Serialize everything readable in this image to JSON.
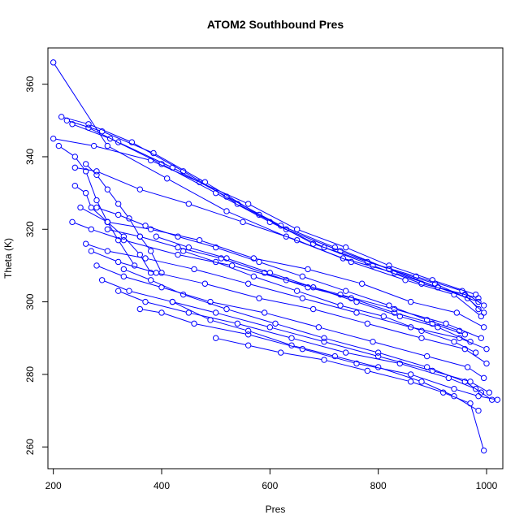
{
  "chart_data": {
    "type": "line",
    "title": "ATOM2 Southbound Pres",
    "xlabel": "Pres",
    "ylabel": "Theta (K)",
    "xlim": [
      190,
      1030
    ],
    "ylim": [
      254,
      370
    ],
    "xticks": [
      200,
      400,
      600,
      800,
      1000
    ],
    "yticks": [
      260,
      280,
      300,
      320,
      340,
      360
    ],
    "marker": "open-circle",
    "grid": false,
    "legend": "none",
    "color": "#0000ff",
    "series": [
      {
        "x": [
          200,
          275,
          380,
          470,
          560,
          650,
          740,
          820,
          900,
          980
        ],
        "y": [
          345,
          343,
          339,
          333,
          327,
          320,
          315,
          310,
          306,
          302
        ]
      },
      {
        "x": [
          215,
          265,
          345,
          440,
          540,
          630,
          730,
          820,
          910,
          985
        ],
        "y": [
          351,
          349,
          344,
          336,
          327,
          320,
          314,
          309,
          304,
          301
        ]
      },
      {
        "x": [
          225,
          290,
          385,
          480,
          580,
          680,
          780,
          870,
          955,
          995
        ],
        "y": [
          350,
          347,
          341,
          333,
          324,
          316,
          311,
          307,
          303,
          299
        ]
      },
      {
        "x": [
          235,
          305,
          400,
          500,
          600,
          700,
          790,
          880,
          960,
          985
        ],
        "y": [
          349,
          345,
          338,
          330,
          322,
          315,
          310,
          305,
          302,
          298
        ]
      },
      {
        "x": [
          265,
          320,
          420,
          520,
          620,
          720,
          820,
          905,
          965,
          995
        ],
        "y": [
          348,
          344,
          337,
          329,
          321,
          315,
          309,
          305,
          301,
          297
        ]
      },
      {
        "x": [
          200,
          300,
          410,
          520,
          630,
          735,
          830,
          910,
          985
        ],
        "y": [
          366,
          343,
          334,
          325,
          318,
          312,
          308,
          304,
          300
        ]
      },
      {
        "x": [
          240,
          280,
          360,
          450,
          550,
          650,
          750,
          850,
          940,
          990
        ],
        "y": [
          337,
          336,
          331,
          327,
          322,
          317,
          311,
          306,
          302,
          296
        ]
      },
      {
        "x": [
          250,
          300,
          380,
          470,
          570,
          670,
          770,
          860,
          945,
          995
        ],
        "y": [
          326,
          322,
          320,
          317,
          312,
          309,
          305,
          300,
          297,
          293
        ]
      },
      {
        "x": [
          235,
          270,
          330,
          430,
          530,
          630,
          730,
          830,
          925,
          990
        ],
        "y": [
          322,
          320,
          317,
          313,
          310,
          306,
          302,
          298,
          294,
          290
        ]
      },
      {
        "x": [
          260,
          300,
          370,
          460,
          560,
          660,
          760,
          860,
          950,
          1000
        ],
        "y": [
          316,
          314,
          312,
          309,
          305,
          301,
          297,
          293,
          290,
          287
        ]
      },
      {
        "x": [
          270,
          320,
          390,
          480,
          580,
          680,
          780,
          880,
          960,
          1000
        ],
        "y": [
          314,
          311,
          308,
          305,
          301,
          298,
          294,
          290,
          287,
          283
        ]
      },
      {
        "x": [
          280,
          330,
          400,
          490,
          590,
          690,
          790,
          890,
          965,
          995
        ],
        "y": [
          310,
          307,
          304,
          300,
          297,
          293,
          289,
          285,
          282,
          279
        ]
      },
      {
        "x": [
          290,
          340,
          420,
          500,
          600,
          700,
          800,
          900,
          970,
          1005
        ],
        "y": [
          306,
          303,
          300,
          297,
          293,
          289,
          285,
          281,
          278,
          275
        ]
      },
      {
        "x": [
          320,
          370,
          450,
          540,
          640,
          740,
          840,
          930,
          980,
          1010
        ],
        "y": [
          303,
          300,
          297,
          294,
          290,
          286,
          283,
          279,
          276,
          273
        ]
      },
      {
        "x": [
          360,
          400,
          460,
          560,
          660,
          760,
          860,
          940,
          985,
          1020
        ],
        "y": [
          298,
          297,
          294,
          291,
          287,
          283,
          280,
          276,
          274,
          273
        ]
      },
      {
        "x": [
          330,
          380,
          440,
          520,
          610,
          700,
          800,
          890,
          960,
          990
        ],
        "y": [
          309,
          306,
          302,
          298,
          294,
          290,
          286,
          282,
          278,
          275
        ]
      },
      {
        "x": [
          420,
          490,
          560,
          640,
          720,
          800,
          880,
          940,
          985
        ],
        "y": [
          300,
          295,
          292,
          288,
          285,
          282,
          278,
          274,
          270
        ]
      },
      {
        "x": [
          500,
          560,
          620,
          700,
          780,
          860,
          920,
          970,
          995
        ],
        "y": [
          290,
          288,
          286,
          284,
          281,
          278,
          275,
          272,
          259
        ]
      },
      {
        "x": [
          210,
          240,
          260,
          280,
          300,
          320,
          350
        ],
        "y": [
          343,
          340,
          336,
          328,
          322,
          317,
          310
        ]
      },
      {
        "x": [
          240,
          260,
          270,
          300,
          330,
          360,
          380
        ],
        "y": [
          332,
          330,
          326,
          322,
          318,
          313,
          308
        ]
      },
      {
        "x": [
          260,
          280,
          300,
          320,
          340,
          360,
          380,
          400
        ],
        "y": [
          338,
          335,
          331,
          327,
          323,
          318,
          314,
          308
        ]
      },
      {
        "x": [
          280,
          320,
          370,
          430,
          500,
          580,
          660,
          740,
          820,
          890,
          950
        ],
        "y": [
          326,
          324,
          321,
          318,
          315,
          311,
          307,
          303,
          299,
          295,
          292
        ]
      },
      {
        "x": [
          300,
          360,
          430,
          510,
          590,
          670,
          750,
          830,
          900,
          960
        ],
        "y": [
          320,
          318,
          315,
          312,
          308,
          304,
          301,
          297,
          294,
          291
        ]
      },
      {
        "x": [
          390,
          450,
          520,
          600,
          680,
          760,
          840,
          910,
          970
        ],
        "y": [
          318,
          315,
          312,
          308,
          304,
          300,
          296,
          293,
          289
        ]
      },
      {
        "x": [
          440,
          500,
          570,
          650,
          730,
          810,
          880,
          940,
          980
        ],
        "y": [
          314,
          311,
          307,
          303,
          299,
          296,
          292,
          289,
          286
        ]
      }
    ]
  }
}
